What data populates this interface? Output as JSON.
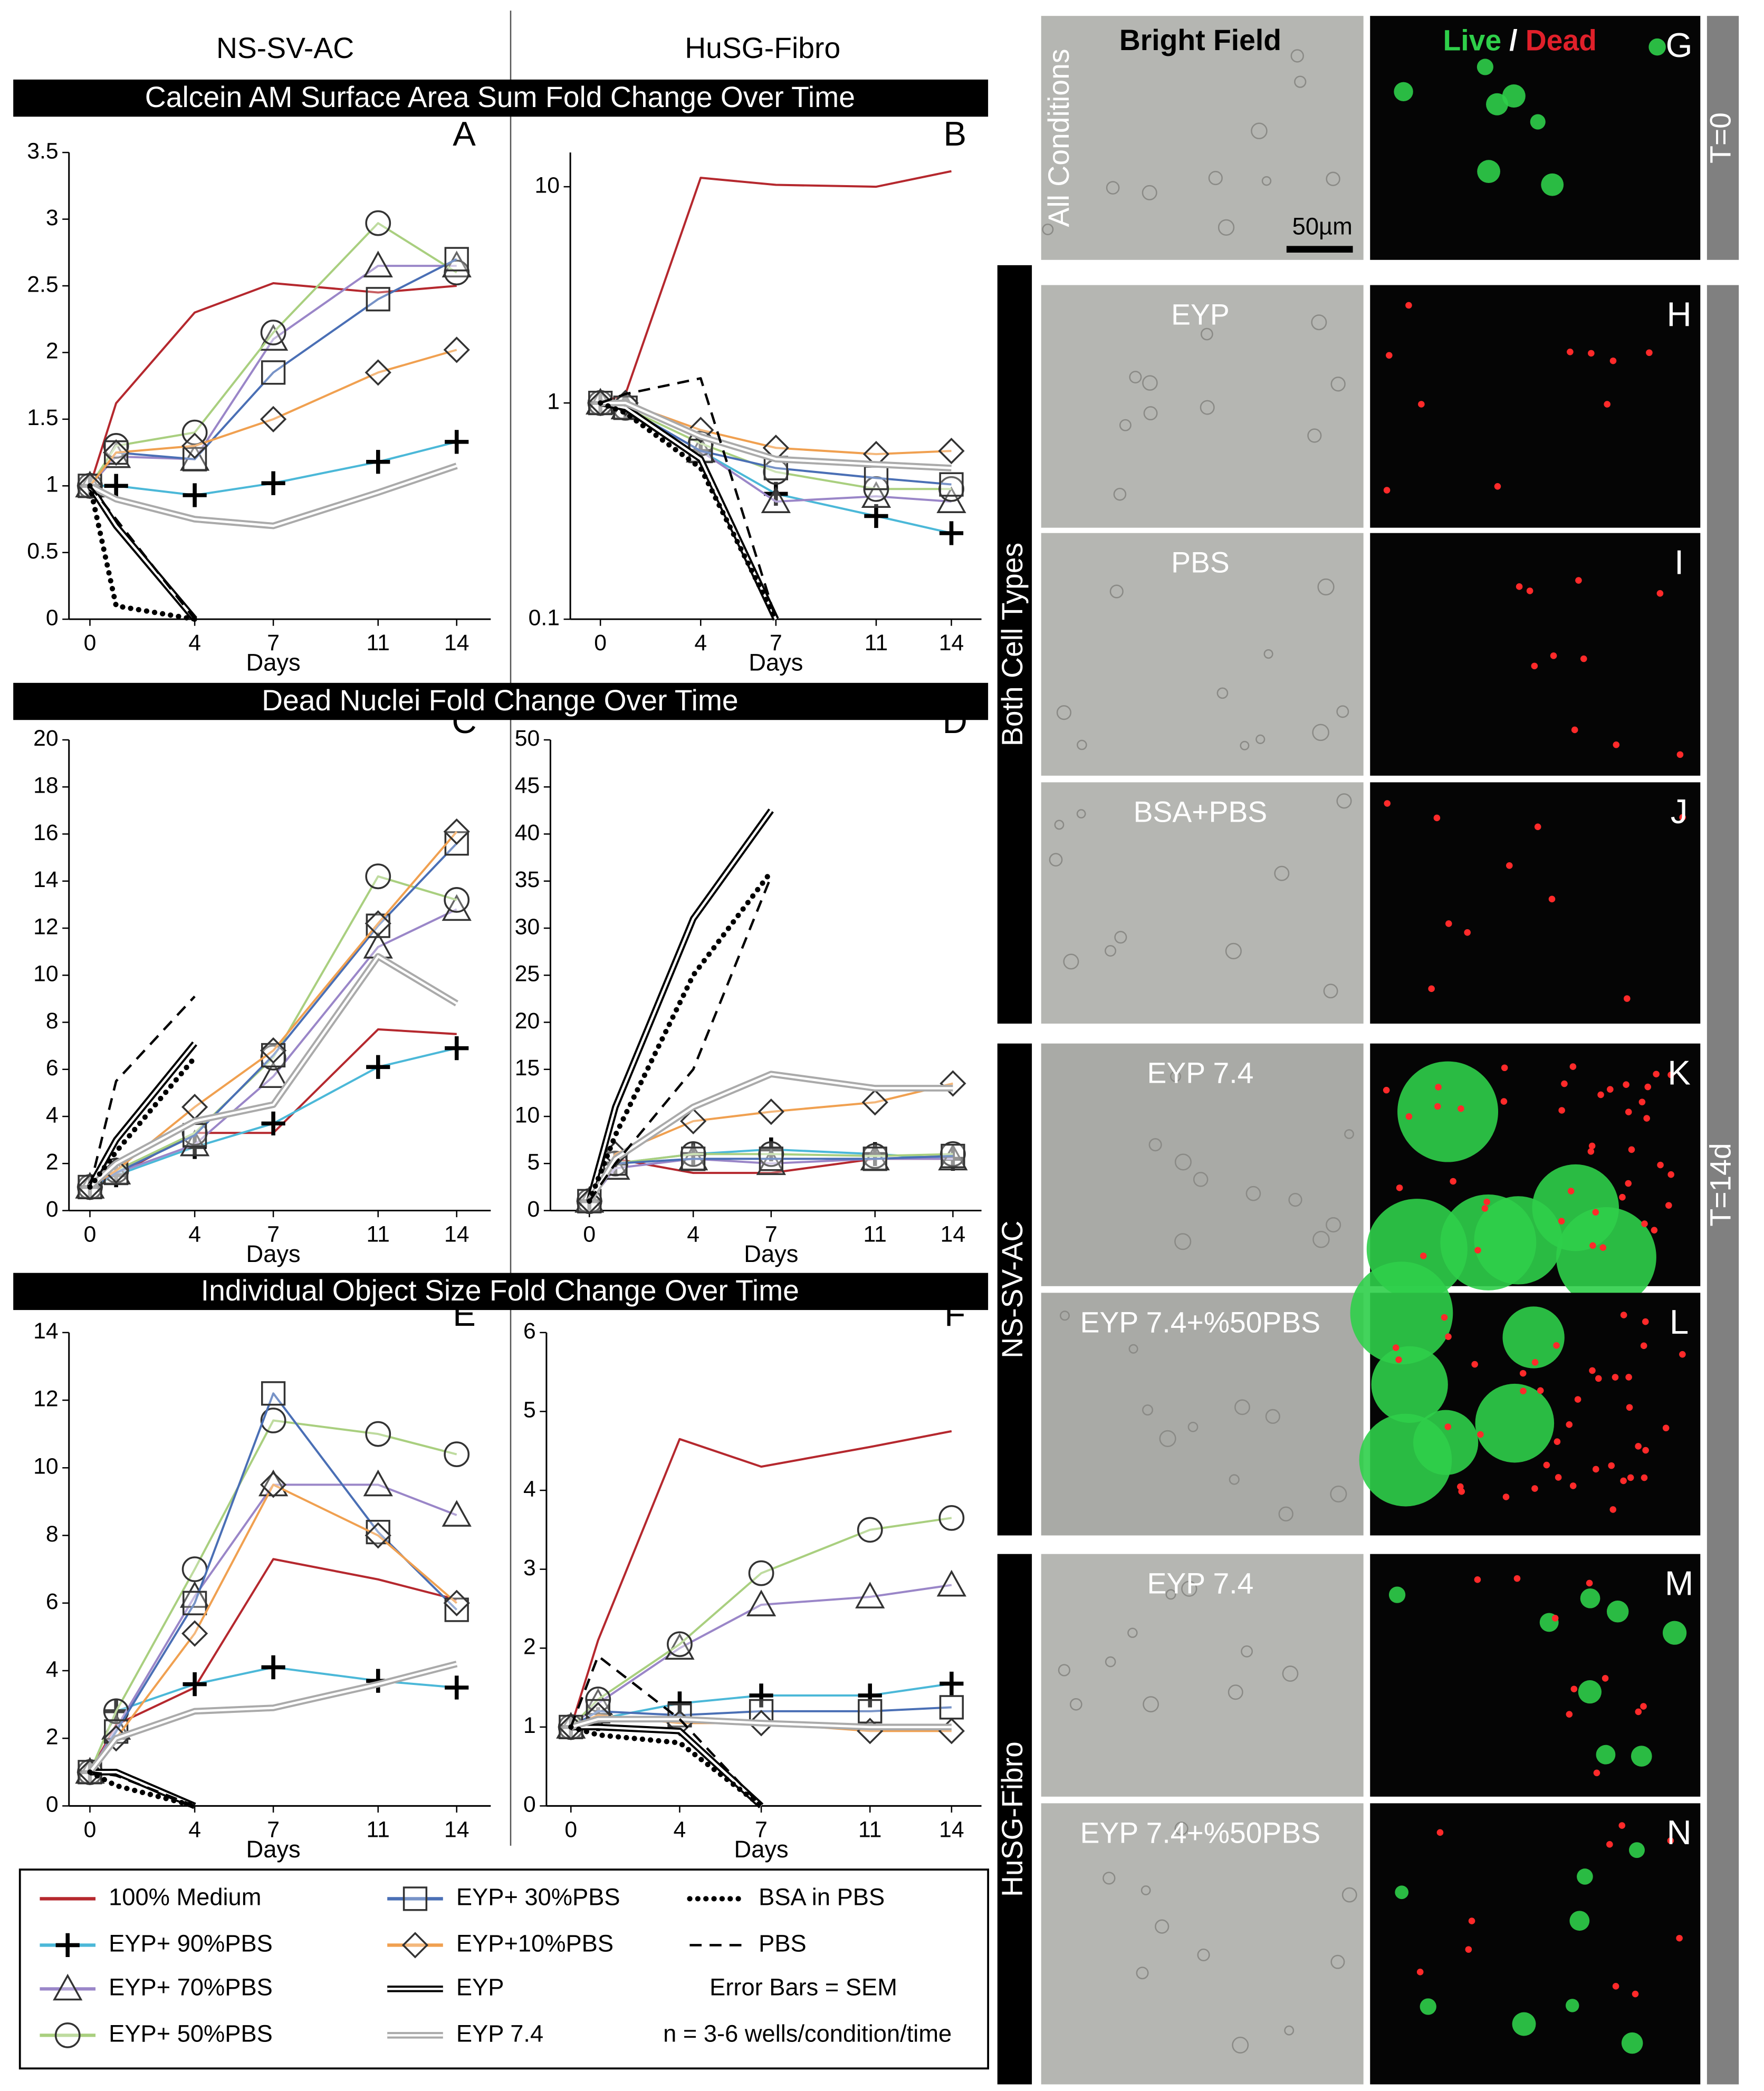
{
  "headers": [
    "NS-SV-AC",
    "HuSG-Fibro"
  ],
  "sections": [
    "Calcein AM Surface Area Sum Fold Change Over Time",
    "Dead Nuclei Fold Change Over Time",
    "Individual Object Size Fold Change Over Time"
  ],
  "legend": {
    "series": [
      {
        "name": "100% Medium",
        "color": "#b5282e",
        "marker": "none",
        "style": "solid"
      },
      {
        "name": "EYP+ 90%PBS",
        "color": "#4bb8d8",
        "marker": "plus",
        "style": "solid"
      },
      {
        "name": "EYP+ 70%PBS",
        "color": "#9a86c8",
        "marker": "triangle",
        "style": "solid"
      },
      {
        "name": "EYP+ 50%PBS",
        "color": "#a9cf7f",
        "marker": "circle",
        "style": "solid"
      },
      {
        "name": "EYP+ 30%PBS",
        "color": "#4a6fb5",
        "marker": "square",
        "style": "solid"
      },
      {
        "name": "EYP+10%PBS",
        "color": "#f0a050",
        "marker": "diamond",
        "style": "solid"
      },
      {
        "name": "EYP",
        "color": "#000000",
        "marker": "none",
        "style": "double"
      },
      {
        "name": "EYP 7.4",
        "color": "#aaaaaa",
        "marker": "none",
        "style": "double"
      },
      {
        "name": "BSA in PBS",
        "color": "#000000",
        "marker": "none",
        "style": "dotted"
      },
      {
        "name": "PBS",
        "color": "#000000",
        "marker": "none",
        "style": "dashed"
      }
    ],
    "notes": [
      "Error Bars = SEM",
      "n = 3-6 wells/condition/time"
    ]
  },
  "chart_data": [
    {
      "type": "line",
      "title": "A",
      "xlabel": "Days",
      "x": [
        0,
        1,
        4,
        7,
        11,
        14
      ],
      "xlim": [
        -0.8,
        15.3
      ],
      "xticks": [
        0,
        4,
        7,
        11,
        14
      ],
      "ylim": [
        0,
        3.5
      ],
      "yticks": [
        0,
        0.5,
        1,
        1.5,
        2,
        2.5,
        3,
        3.5
      ],
      "series": [
        {
          "values": [
            1,
            1.62,
            2.3,
            2.52,
            2.45,
            2.5
          ]
        },
        {
          "values": [
            1,
            1.0,
            0.93,
            1.02,
            1.18,
            1.33
          ]
        },
        {
          "values": [
            1,
            1.22,
            1.2,
            2.1,
            2.65,
            2.65
          ]
        },
        {
          "values": [
            1,
            1.3,
            1.4,
            2.15,
            2.97,
            2.6
          ]
        },
        {
          "values": [
            1,
            1.25,
            1.2,
            1.85,
            2.4,
            2.7
          ]
        },
        {
          "values": [
            1,
            1.25,
            1.3,
            1.5,
            1.85,
            2.02
          ]
        },
        {
          "values": [
            1,
            0.7,
            0,
            null,
            null,
            null
          ]
        },
        {
          "values": [
            1,
            0.9,
            0.75,
            0.7,
            0.95,
            1.15
          ]
        },
        {
          "values": [
            1,
            0.1,
            0,
            null,
            null,
            null
          ]
        },
        {
          "values": [
            1,
            0.75,
            0,
            null,
            null,
            null
          ]
        }
      ]
    },
    {
      "type": "line",
      "title": "B",
      "xlabel": "Days",
      "x": [
        0,
        1,
        4,
        7,
        11,
        14
      ],
      "xlim": [
        -1.2,
        15.2
      ],
      "xticks": [
        0,
        4,
        7,
        11,
        14
      ],
      "ylim": [
        0.1,
        14.4
      ],
      "yticks": [
        0.1,
        1,
        10
      ],
      "log": true,
      "series": [
        {
          "values": [
            1,
            1.1,
            11,
            10.2,
            10,
            11.8
          ]
        },
        {
          "values": [
            1,
            0.95,
            0.6,
            0.38,
            0.3,
            0.25
          ]
        },
        {
          "values": [
            1,
            0.95,
            0.6,
            0.35,
            0.37,
            0.35
          ]
        },
        {
          "values": [
            1,
            0.95,
            0.65,
            0.48,
            0.4,
            0.4
          ]
        },
        {
          "values": [
            1,
            0.95,
            0.6,
            0.5,
            0.45,
            0.42
          ]
        },
        {
          "values": [
            1,
            1,
            0.75,
            0.62,
            0.58,
            0.6
          ]
        },
        {
          "values": [
            1,
            0.95,
            0.55,
            0.1,
            null,
            null
          ]
        },
        {
          "values": [
            1,
            1,
            0.7,
            0.55,
            0.52,
            0.5
          ]
        },
        {
          "values": [
            1,
            0.9,
            0.5,
            0.1,
            null,
            null
          ]
        },
        {
          "values": [
            1,
            1.1,
            1.3,
            0.1,
            null,
            null
          ]
        }
      ]
    },
    {
      "type": "line",
      "title": "C",
      "xlabel": "Days",
      "x": [
        0,
        1,
        4,
        7,
        11,
        14
      ],
      "xlim": [
        -0.8,
        15.3
      ],
      "xticks": [
        0,
        4,
        7,
        11,
        14
      ],
      "ylim": [
        0,
        20
      ],
      "yticks": [
        0,
        2,
        4,
        6,
        8,
        10,
        12,
        14,
        16,
        18,
        20
      ],
      "series": [
        {
          "values": [
            1,
            1.5,
            3.3,
            3.3,
            7.7,
            7.5
          ]
        },
        {
          "values": [
            1,
            1.5,
            2.7,
            3.7,
            6.1,
            6.9
          ]
        },
        {
          "values": [
            1,
            1.6,
            2.8,
            5.7,
            11.2,
            12.8
          ]
        },
        {
          "values": [
            1,
            1.7,
            3.3,
            6.5,
            14.2,
            13.2
          ]
        },
        {
          "values": [
            1,
            1.6,
            3.2,
            6.6,
            12.1,
            15.6
          ]
        },
        {
          "values": [
            1,
            1.7,
            4.4,
            6.8,
            12.2,
            16.1
          ]
        },
        {
          "values": [
            1,
            3,
            7.1,
            null,
            null,
            null
          ]
        },
        {
          "values": [
            1,
            2,
            3.8,
            4.5,
            10.8,
            8.8
          ]
        },
        {
          "values": [
            1,
            2.5,
            6.5,
            null,
            null,
            null
          ]
        },
        {
          "values": [
            1,
            5.5,
            9.1,
            null,
            null,
            null
          ]
        }
      ]
    },
    {
      "type": "line",
      "title": "D",
      "xlabel": "Days",
      "x": [
        0,
        1,
        4,
        7,
        11,
        14
      ],
      "xlim": [
        -1.5,
        15.1
      ],
      "xticks": [
        0,
        4,
        7,
        11,
        14
      ],
      "ylim": [
        0,
        50
      ],
      "yticks": [
        0,
        5,
        10,
        15,
        20,
        25,
        30,
        35,
        40,
        45,
        50
      ],
      "series": [
        {
          "values": [
            1,
            5.5,
            4,
            4,
            5.5,
            5.5
          ]
        },
        {
          "values": [
            1,
            5,
            6,
            6.5,
            6,
            5.5
          ]
        },
        {
          "values": [
            1,
            4.5,
            5.5,
            5,
            5.5,
            5.5
          ]
        },
        {
          "values": [
            1,
            5,
            6,
            6,
            5.8,
            6
          ]
        },
        {
          "values": [
            1,
            5,
            5.5,
            5.5,
            5.5,
            5.8
          ]
        },
        {
          "values": [
            1,
            6,
            9.5,
            10.5,
            11.5,
            13.5
          ]
        },
        {
          "values": [
            1,
            11,
            31,
            42.5,
            null,
            null
          ]
        },
        {
          "values": [
            1,
            5.5,
            11,
            14.5,
            13,
            13
          ]
        },
        {
          "values": [
            1,
            8,
            25,
            36,
            null,
            null
          ]
        },
        {
          "values": [
            1,
            5,
            15,
            35.5,
            null,
            null
          ]
        }
      ]
    },
    {
      "type": "line",
      "title": "E",
      "xlabel": "Days",
      "x": [
        0,
        1,
        4,
        7,
        11,
        14
      ],
      "xlim": [
        -0.8,
        15.3
      ],
      "xticks": [
        0,
        4,
        7,
        11,
        14
      ],
      "ylim": [
        0,
        14
      ],
      "yticks": [
        0,
        2,
        4,
        6,
        8,
        10,
        12,
        14
      ],
      "series": [
        {
          "values": [
            1,
            2.4,
            3.5,
            7.3,
            6.7,
            6.1
          ]
        },
        {
          "values": [
            1,
            2.8,
            3.6,
            4.1,
            3.7,
            3.5
          ]
        },
        {
          "values": [
            1,
            2.3,
            6.2,
            9.5,
            9.5,
            8.6
          ]
        },
        {
          "values": [
            1,
            2.8,
            7,
            11.4,
            11,
            10.4
          ]
        },
        {
          "values": [
            1,
            2.2,
            6,
            12.2,
            8.1,
            5.8
          ]
        },
        {
          "values": [
            1,
            2,
            5.1,
            9.5,
            8,
            6
          ]
        },
        {
          "values": [
            1,
            1,
            0,
            null,
            null,
            null
          ]
        },
        {
          "values": [
            1,
            2,
            2.8,
            2.9,
            3.6,
            4.2
          ]
        },
        {
          "values": [
            1,
            0.6,
            0,
            null,
            null,
            null
          ]
        },
        {
          "values": [
            1,
            0.9,
            0,
            null,
            null,
            null
          ]
        }
      ]
    },
    {
      "type": "line",
      "title": "F",
      "xlabel": "Days",
      "x": [
        0,
        1,
        4,
        7,
        11,
        14
      ],
      "xlim": [
        -0.9,
        15.1
      ],
      "xticks": [
        0,
        4,
        7,
        11,
        14
      ],
      "ylim": [
        0,
        6
      ],
      "yticks": [
        0,
        1,
        2,
        3,
        4,
        5,
        6
      ],
      "series": [
        {
          "values": [
            1,
            2.1,
            4.65,
            4.3,
            4.55,
            4.75
          ]
        },
        {
          "values": [
            1,
            1.1,
            1.3,
            1.4,
            1.4,
            1.55
          ]
        },
        {
          "values": [
            1,
            1.3,
            2,
            2.55,
            2.65,
            2.8
          ]
        },
        {
          "values": [
            1,
            1.35,
            2.05,
            2.95,
            3.5,
            3.65
          ]
        },
        {
          "values": [
            1,
            1.2,
            1.15,
            1.2,
            1.2,
            1.25
          ]
        },
        {
          "values": [
            1,
            1.15,
            1.05,
            1.05,
            0.95,
            0.95
          ]
        },
        {
          "values": [
            1,
            1,
            0.95,
            0,
            null,
            null
          ]
        },
        {
          "values": [
            1,
            1.1,
            1.1,
            1.05,
            1.0,
            1.0
          ]
        },
        {
          "values": [
            1,
            0.9,
            0.8,
            0,
            null,
            null
          ]
        },
        {
          "values": [
            1,
            1.9,
            1.1,
            0,
            null,
            null
          ]
        }
      ]
    }
  ],
  "images": {
    "column_title": "Bright Field",
    "live": "Live",
    "slash": "/",
    "dead": "Dead",
    "scale_bar": "50µm",
    "groups": [
      "All Conditions",
      "Both Cell Types",
      "NS-SV-AC",
      "HuSG-Fibro"
    ],
    "times": [
      "T=0",
      "T=14d"
    ],
    "panels": [
      {
        "letter": "G"
      },
      {
        "letter": "H",
        "condition": "EYP"
      },
      {
        "letter": "I",
        "condition": "PBS"
      },
      {
        "letter": "J",
        "condition": "BSA+PBS"
      },
      {
        "letter": "K",
        "condition": "EYP 7.4"
      },
      {
        "letter": "L",
        "condition": "EYP 7.4+%50PBS"
      },
      {
        "letter": "M",
        "condition": "EYP 7.4"
      },
      {
        "letter": "N",
        "condition": "EYP 7.4+%50PBS"
      }
    ]
  }
}
